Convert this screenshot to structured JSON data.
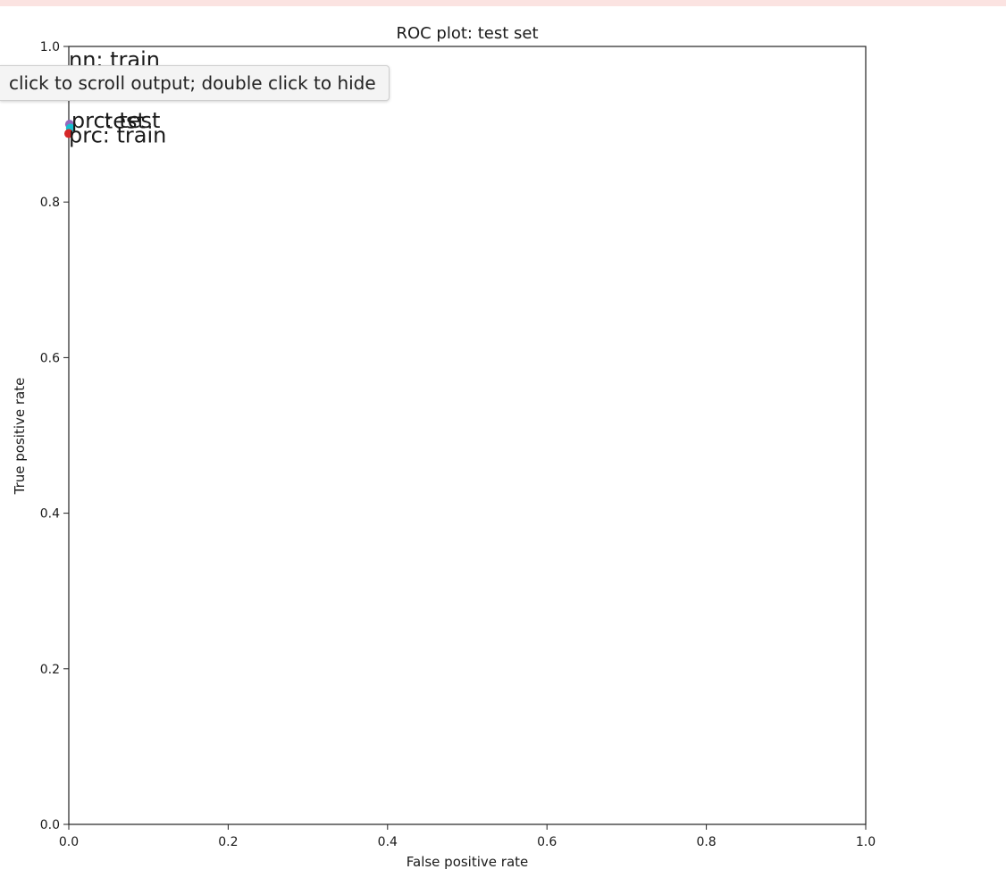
{
  "tooltip": {
    "text": "click to scroll output; double click to hide"
  },
  "chart_data": {
    "type": "scatter",
    "title": "ROC plot: test set",
    "xlabel": "False positive rate",
    "ylabel": "True positive rate",
    "xlim": [
      0.0,
      1.0
    ],
    "ylim": [
      0.0,
      1.0
    ],
    "xticks": [
      "0.0",
      "0.2",
      "0.4",
      "0.6",
      "0.8",
      "1.0"
    ],
    "yticks": [
      "0.0",
      "0.2",
      "0.4",
      "0.6",
      "0.8",
      "1.0"
    ],
    "grid": false,
    "points": [
      {
        "label": "nn: train",
        "x": 0.0,
        "y": 0.96,
        "color": "#1f77b4"
      },
      {
        "label": "prc: test",
        "x": 0.001,
        "y": 0.9,
        "color": "#9467bd"
      },
      {
        "label": "test",
        "x": 0.002,
        "y": 0.895,
        "color": "#17becf"
      },
      {
        "label": "prc: train",
        "x": 0.0,
        "y": 0.888,
        "color": "#d62728"
      }
    ]
  }
}
